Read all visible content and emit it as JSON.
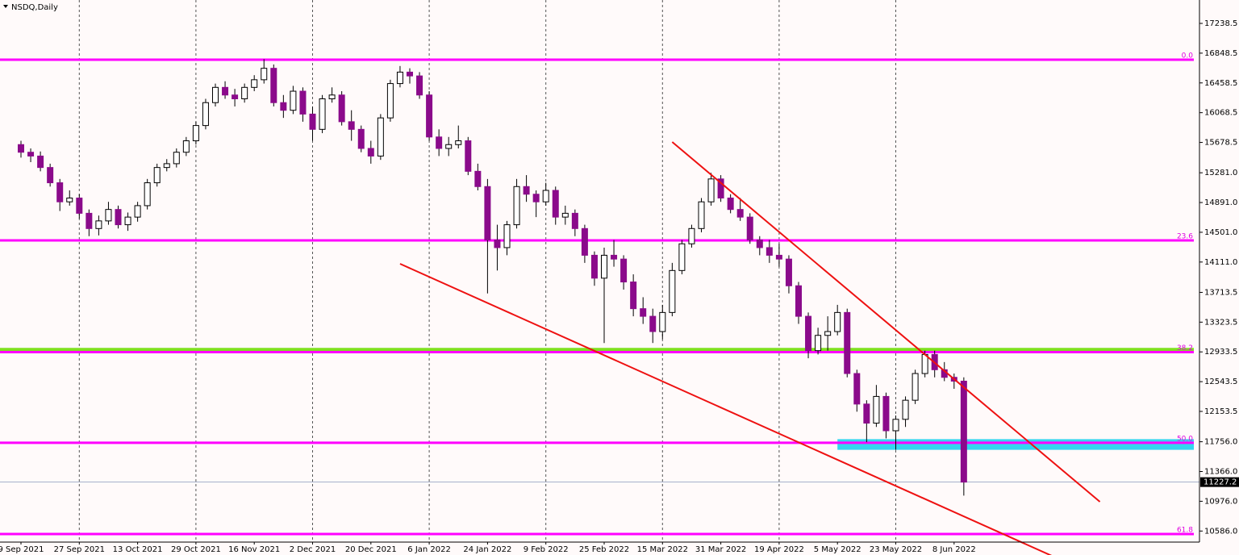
{
  "chart_data": {
    "type": "candlestick",
    "title": "NSDQ,Daily",
    "categories": [
      "9 Sep 2021",
      null,
      null,
      null,
      null,
      null,
      "27 Sep 2021",
      null,
      null,
      null,
      null,
      null,
      "13 Oct 2021",
      null,
      null,
      null,
      null,
      null,
      "29 Oct 2021",
      null,
      null,
      null,
      null,
      null,
      "16 Nov 2021",
      null,
      null,
      null,
      null,
      null,
      "2 Dec 2021",
      null,
      null,
      null,
      null,
      null,
      "20 Dec 2021",
      null,
      null,
      null,
      null,
      null,
      "6 Jan 2022",
      null,
      null,
      null,
      null,
      null,
      "24 Jan 2022",
      null,
      null,
      null,
      null,
      null,
      "9 Feb 2022",
      null,
      null,
      null,
      null,
      null,
      "25 Feb 2022",
      null,
      null,
      null,
      null,
      null,
      "15 Mar 2022",
      null,
      null,
      null,
      null,
      null,
      "31 Mar 2022",
      null,
      null,
      null,
      null,
      null,
      "19 Apr 2022",
      null,
      null,
      null,
      null,
      null,
      "5 May 2022",
      null,
      null,
      null,
      null,
      null,
      "23 May 2022",
      null,
      null,
      null,
      null,
      null,
      "8 Jun 2022",
      null
    ],
    "ohlc": [
      [
        15650,
        15700,
        15480,
        15550
      ],
      [
        15550,
        15600,
        15420,
        15500
      ],
      [
        15500,
        15560,
        15300,
        15350
      ],
      [
        15350,
        15400,
        15100,
        15150
      ],
      [
        15150,
        15200,
        14780,
        14900
      ],
      [
        14900,
        15050,
        14850,
        14950
      ],
      [
        14950,
        15000,
        14680,
        14750
      ],
      [
        14750,
        14800,
        14450,
        14550
      ],
      [
        14550,
        14720,
        14460,
        14650
      ],
      [
        14650,
        14900,
        14600,
        14800
      ],
      [
        14800,
        14850,
        14550,
        14600
      ],
      [
        14600,
        14760,
        14520,
        14700
      ],
      [
        14700,
        14900,
        14640,
        14850
      ],
      [
        14850,
        15200,
        14800,
        15150
      ],
      [
        15150,
        15400,
        15100,
        15350
      ],
      [
        15350,
        15460,
        15300,
        15400
      ],
      [
        15400,
        15600,
        15350,
        15550
      ],
      [
        15550,
        15750,
        15500,
        15700
      ],
      [
        15700,
        15950,
        15650,
        15900
      ],
      [
        15900,
        16250,
        15850,
        16200
      ],
      [
        16200,
        16450,
        16150,
        16400
      ],
      [
        16400,
        16480,
        16250,
        16300
      ],
      [
        16300,
        16380,
        16150,
        16250
      ],
      [
        16250,
        16450,
        16200,
        16400
      ],
      [
        16400,
        16560,
        16350,
        16500
      ],
      [
        16500,
        16770,
        16450,
        16650
      ],
      [
        16650,
        16700,
        16150,
        16200
      ],
      [
        16200,
        16300,
        16000,
        16100
      ],
      [
        16100,
        16420,
        16050,
        16350
      ],
      [
        16350,
        16400,
        15950,
        16050
      ],
      [
        16050,
        16150,
        15700,
        15850
      ],
      [
        15850,
        16300,
        15800,
        16250
      ],
      [
        16250,
        16400,
        16200,
        16300
      ],
      [
        16300,
        16350,
        15900,
        15950
      ],
      [
        15950,
        16100,
        15700,
        15850
      ],
      [
        15850,
        15900,
        15550,
        15600
      ],
      [
        15600,
        15700,
        15400,
        15500
      ],
      [
        15500,
        16050,
        15450,
        16000
      ],
      [
        16000,
        16500,
        15950,
        16450
      ],
      [
        16450,
        16680,
        16400,
        16600
      ],
      [
        16600,
        16650,
        16450,
        16550
      ],
      [
        16550,
        16600,
        16250,
        16300
      ],
      [
        16300,
        16350,
        15700,
        15750
      ],
      [
        15750,
        15850,
        15500,
        15600
      ],
      [
        15600,
        15750,
        15500,
        15650
      ],
      [
        15650,
        15900,
        15600,
        15700
      ],
      [
        15700,
        15750,
        15250,
        15300
      ],
      [
        15300,
        15400,
        15050,
        15100
      ],
      [
        15100,
        15200,
        13700,
        14400
      ],
      [
        14400,
        14600,
        14000,
        14300
      ],
      [
        14300,
        14650,
        14200,
        14600
      ],
      [
        14600,
        15200,
        14550,
        15100
      ],
      [
        15100,
        15250,
        14900,
        15000
      ],
      [
        15000,
        15050,
        14700,
        14900
      ],
      [
        14900,
        15150,
        14850,
        15050
      ],
      [
        15050,
        15100,
        14600,
        14700
      ],
      [
        14700,
        14850,
        14600,
        14750
      ],
      [
        14750,
        14800,
        14450,
        14550
      ],
      [
        14550,
        14600,
        14100,
        14200
      ],
      [
        14200,
        14250,
        13800,
        13900
      ],
      [
        13900,
        14300,
        13050,
        14200
      ],
      [
        14200,
        14400,
        14050,
        14150
      ],
      [
        14150,
        14200,
        13750,
        13850
      ],
      [
        13850,
        13950,
        13400,
        13500
      ],
      [
        13500,
        13650,
        13300,
        13400
      ],
      [
        13400,
        13500,
        13050,
        13200
      ],
      [
        13200,
        13550,
        13100,
        13450
      ],
      [
        13450,
        14100,
        13400,
        14000
      ],
      [
        14000,
        14400,
        13950,
        14350
      ],
      [
        14350,
        14600,
        14300,
        14550
      ],
      [
        14550,
        14950,
        14500,
        14900
      ],
      [
        14900,
        15280,
        14850,
        15200
      ],
      [
        15200,
        15250,
        14900,
        14950
      ],
      [
        14950,
        15000,
        14750,
        14800
      ],
      [
        14800,
        14950,
        14650,
        14700
      ],
      [
        14700,
        14750,
        14350,
        14400
      ],
      [
        14400,
        14450,
        14200,
        14300
      ],
      [
        14300,
        14400,
        14100,
        14200
      ],
      [
        14200,
        14350,
        14050,
        14150
      ],
      [
        14150,
        14200,
        13700,
        13800
      ],
      [
        13800,
        13850,
        13300,
        13400
      ],
      [
        13400,
        13450,
        12850,
        12950
      ],
      [
        12950,
        13250,
        12900,
        13150
      ],
      [
        13150,
        13400,
        12950,
        13200
      ],
      [
        13200,
        13550,
        13150,
        13450
      ],
      [
        13450,
        13500,
        12600,
        12650
      ],
      [
        12650,
        12700,
        12150,
        12250
      ],
      [
        12250,
        12300,
        11750,
        12000
      ],
      [
        12000,
        12500,
        11950,
        12350
      ],
      [
        12350,
        12400,
        11800,
        11900
      ],
      [
        11900,
        12100,
        11650,
        12050
      ],
      [
        12050,
        12350,
        11950,
        12300
      ],
      [
        12300,
        12700,
        12250,
        12650
      ],
      [
        12650,
        12950,
        12600,
        12900
      ],
      [
        12900,
        12950,
        12600,
        12700
      ],
      [
        12700,
        12800,
        12550,
        12600
      ],
      [
        12600,
        12650,
        12450,
        12550
      ],
      [
        12550,
        12600,
        11050,
        11227.2
      ]
    ],
    "up_color": "#ffffff",
    "down_color": "#8b0a8b",
    "ylim": [
      10441,
      17545
    ],
    "yticks": [
      17238.5,
      16848.5,
      16458.5,
      16068.5,
      15678.5,
      {
        "value": 15281,
        "label": "15281.0"
      },
      {
        "value": 14891,
        "label": "14891.0"
      },
      {
        "value": 14501,
        "label": "14501.0"
      },
      {
        "value": 14111,
        "label": "14111.0"
      },
      13713.5,
      13323.5,
      12933.5,
      12543.5,
      12153.5,
      {
        "value": 11756,
        "label": "11756.0"
      },
      {
        "value": 11366,
        "label": "11366.0"
      },
      {
        "value": 10976,
        "label": "10976.0"
      },
      {
        "value": 10586,
        "label": "10586.0"
      }
    ],
    "last_price": 11227.2,
    "fib_levels": [
      {
        "label": "0.0",
        "price": 16763
      },
      {
        "label": "23.6",
        "price": 14395
      },
      {
        "label": "38.2",
        "price": 12930
      },
      {
        "label": "50.0",
        "price": 11742
      },
      {
        "label": "61.8",
        "price": 10547
      }
    ],
    "fib_color": "#ff00ff",
    "support_line": {
      "price": 12960,
      "color": "#7fe020"
    },
    "zone": {
      "from_index": 84,
      "top": 11790,
      "bottom": 11650,
      "color": "#33d6f0"
    },
    "trendlines": [
      {
        "points": [
          [
            67,
            15684
          ],
          [
            111,
            10970
          ]
        ],
        "color": "#ee1111"
      },
      {
        "points": [
          [
            39,
            14088
          ],
          [
            106.6,
            10230
          ]
        ],
        "color": "#ee1111"
      }
    ],
    "grid": true
  }
}
